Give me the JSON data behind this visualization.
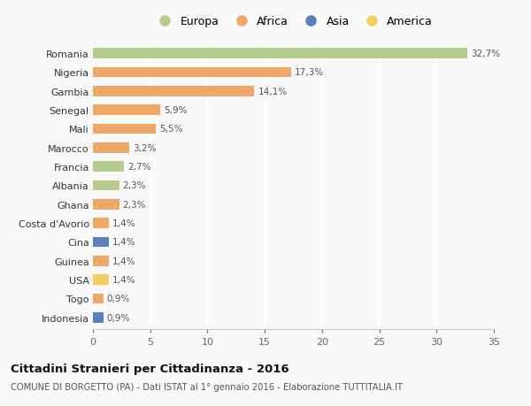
{
  "countries": [
    "Romania",
    "Nigeria",
    "Gambia",
    "Senegal",
    "Mali",
    "Marocco",
    "Francia",
    "Albania",
    "Ghana",
    "Costa d'Avorio",
    "Cina",
    "Guinea",
    "USA",
    "Togo",
    "Indonesia"
  ],
  "values": [
    32.7,
    17.3,
    14.1,
    5.9,
    5.5,
    3.2,
    2.7,
    2.3,
    2.3,
    1.4,
    1.4,
    1.4,
    1.4,
    0.9,
    0.9
  ],
  "labels": [
    "32,7%",
    "17,3%",
    "14,1%",
    "5,9%",
    "5,5%",
    "3,2%",
    "2,7%",
    "2,3%",
    "2,3%",
    "1,4%",
    "1,4%",
    "1,4%",
    "1,4%",
    "0,9%",
    "0,9%"
  ],
  "continents": [
    "Europa",
    "Africa",
    "Africa",
    "Africa",
    "Africa",
    "Africa",
    "Europa",
    "Europa",
    "Africa",
    "Africa",
    "Asia",
    "Africa",
    "America",
    "Africa",
    "Asia"
  ],
  "colors": {
    "Europa": "#b5cc8e",
    "Africa": "#f0a868",
    "Asia": "#5b7fc1",
    "America": "#f0d060"
  },
  "legend_order": [
    "Europa",
    "Africa",
    "Asia",
    "America"
  ],
  "title": "Cittadini Stranieri per Cittadinanza - 2016",
  "subtitle": "COMUNE DI BORGETTO (PA) - Dati ISTAT al 1° gennaio 2016 - Elaborazione TUTTITALIA.IT",
  "xlim": [
    0,
    35
  ],
  "xticks": [
    0,
    5,
    10,
    15,
    20,
    25,
    30,
    35
  ],
  "background_color": "#f9f9f9",
  "grid_color": "#ffffff",
  "bar_height": 0.55
}
